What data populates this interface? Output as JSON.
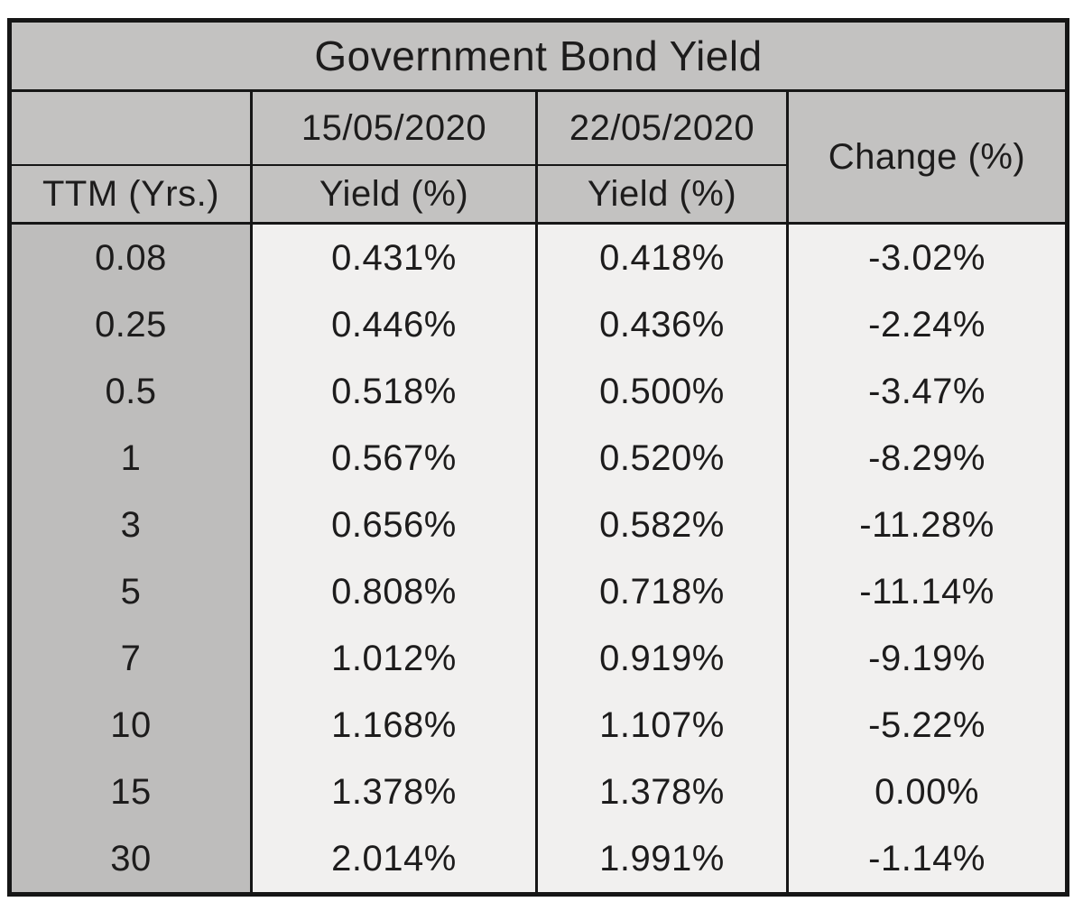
{
  "table": {
    "title": "Government Bond Yield",
    "date_headers": [
      "15/05/2020",
      "22/05/2020"
    ],
    "change_header": "Change (%)",
    "col_headers": [
      "TTM (Yrs.)",
      "Yield (%)",
      "Yield (%)"
    ],
    "rows": [
      {
        "ttm": "0.08",
        "yield1": "0.431%",
        "yield2": "0.418%",
        "change": "-3.02%"
      },
      {
        "ttm": "0.25",
        "yield1": "0.446%",
        "yield2": "0.436%",
        "change": "-2.24%"
      },
      {
        "ttm": "0.5",
        "yield1": "0.518%",
        "yield2": "0.500%",
        "change": "-3.47%"
      },
      {
        "ttm": "1",
        "yield1": "0.567%",
        "yield2": "0.520%",
        "change": "-8.29%"
      },
      {
        "ttm": "3",
        "yield1": "0.656%",
        "yield2": "0.582%",
        "change": "-11.28%"
      },
      {
        "ttm": "5",
        "yield1": "0.808%",
        "yield2": "0.718%",
        "change": "-11.14%"
      },
      {
        "ttm": "7",
        "yield1": "1.012%",
        "yield2": "0.919%",
        "change": "-9.19%"
      },
      {
        "ttm": "10",
        "yield1": "1.168%",
        "yield2": "1.107%",
        "change": "-5.22%"
      },
      {
        "ttm": "15",
        "yield1": "1.378%",
        "yield2": "1.378%",
        "change": "0.00%"
      },
      {
        "ttm": "30",
        "yield1": "2.014%",
        "yield2": "1.991%",
        "change": "-1.14%"
      }
    ],
    "colors": {
      "header_background": "#c3c2c1",
      "ttm_column_background": "#bebdbc",
      "data_cell_background": "#f1f0ef",
      "border": "#161616",
      "text": "#1d1c1c",
      "page_background": "#ffffff"
    }
  },
  "chart_data": {
    "type": "table",
    "title": "Government Bond Yield",
    "columns": [
      "TTM (Yrs.)",
      "Yield (%) 15/05/2020",
      "Yield (%) 22/05/2020",
      "Change (%)"
    ],
    "ttm_years": [
      0.08,
      0.25,
      0.5,
      1,
      3,
      5,
      7,
      10,
      15,
      30
    ],
    "series": [
      {
        "name": "Yield (%) 15/05/2020",
        "values": [
          0.431,
          0.446,
          0.518,
          0.567,
          0.656,
          0.808,
          1.012,
          1.168,
          1.378,
          2.014
        ]
      },
      {
        "name": "Yield (%) 22/05/2020",
        "values": [
          0.418,
          0.436,
          0.5,
          0.52,
          0.582,
          0.718,
          0.919,
          1.107,
          1.378,
          1.991
        ]
      },
      {
        "name": "Change (%)",
        "values": [
          -3.02,
          -2.24,
          -3.47,
          -8.29,
          -11.28,
          -11.14,
          -9.19,
          -5.22,
          0.0,
          -1.14
        ]
      }
    ]
  }
}
